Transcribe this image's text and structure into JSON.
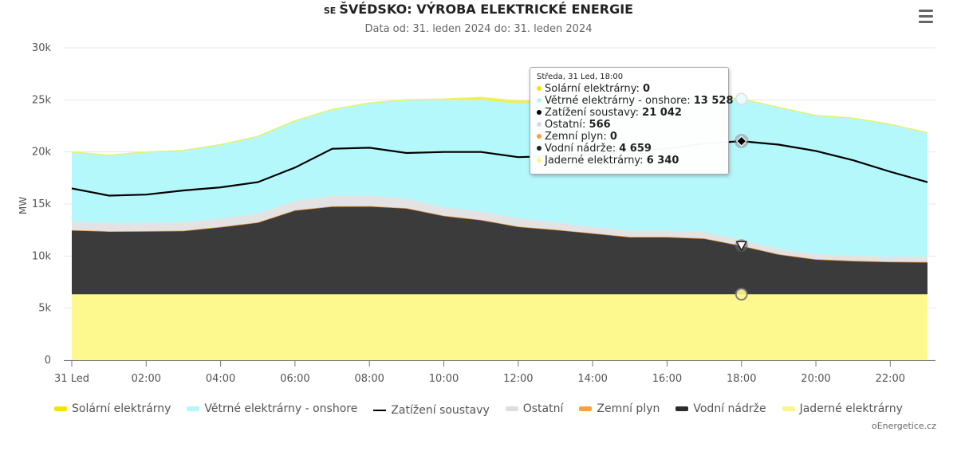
{
  "header": {
    "country_code": "SE",
    "title": "ŠVÉDSKO: VÝROBA ELEKTRICKÉ ENERGIE",
    "subtitle": "Data od: 31. leden 2024 do: 31. leden 2024",
    "menu_icon": "hamburger-menu-icon"
  },
  "credit": "oEnergetice.cz",
  "tooltip": {
    "header": "Středa, 31 Led, 18:00",
    "rows": [
      {
        "label": "Solární elektrárny: ",
        "value": "0",
        "color": "#f2e600"
      },
      {
        "label": "Větrné elektrárny - onshore: ",
        "value": "13 528",
        "color": "#b3f7fb"
      },
      {
        "label": "Zatížení soustavy: ",
        "value": "21 042",
        "color": "#000000"
      },
      {
        "label": "Ostatní: ",
        "value": "566",
        "color": "#d9d9d9"
      },
      {
        "label": "Zemní plyn: ",
        "value": "0",
        "color": "#ff9f40"
      },
      {
        "label": "Vodní nádrže: ",
        "value": "4 659",
        "color": "#222222"
      },
      {
        "label": "Jaderné elektrárny: ",
        "value": "6 340",
        "color": "#fdf58a"
      }
    ]
  },
  "legend": [
    {
      "label": "Solární elektrárny",
      "color": "#f2e600",
      "kind": "area"
    },
    {
      "label": "Větrné elektrárny - onshore",
      "color": "#b3f7fb",
      "kind": "area"
    },
    {
      "label": "Zatížení soustavy",
      "color": "#000000",
      "kind": "line"
    },
    {
      "label": "Ostatní",
      "color": "#dddddd",
      "kind": "area"
    },
    {
      "label": "Zemní plyn",
      "color": "#ff9f40",
      "kind": "area"
    },
    {
      "label": "Vodní nádrže",
      "color": "#2b2b2b",
      "kind": "area"
    },
    {
      "label": "Jaderné elektrárny",
      "color": "#fdf58a",
      "kind": "area"
    }
  ],
  "chart_data": {
    "type": "area",
    "stacked": true,
    "title": "ŠVÉDSKO: VÝROBA ELEKTRICKÉ ENERGIE",
    "subtitle": "Data od: 31. leden 2024 do: 31. leden 2024",
    "ylabel": "MW",
    "ylim": [
      0,
      30000
    ],
    "yticks": [
      0,
      5000,
      10000,
      15000,
      20000,
      25000,
      30000
    ],
    "ytick_labels": [
      "0",
      "5k",
      "10k",
      "15k",
      "20k",
      "25k",
      "30k"
    ],
    "x_hours": [
      0,
      1,
      2,
      3,
      4,
      5,
      6,
      7,
      8,
      9,
      10,
      11,
      12,
      13,
      14,
      15,
      16,
      17,
      18,
      19,
      20,
      21,
      22,
      23
    ],
    "xtick_hours": [
      0,
      2,
      4,
      6,
      8,
      10,
      12,
      14,
      16,
      18,
      20,
      22
    ],
    "xtick_labels": [
      "31 Led",
      "02:00",
      "04:00",
      "06:00",
      "08:00",
      "10:00",
      "12:00",
      "14:00",
      "16:00",
      "18:00",
      "20:00",
      "22:00"
    ],
    "grid": true,
    "legend_position": "bottom",
    "highlight_hour": 18,
    "series": [
      {
        "name": "Jaderné elektrárny",
        "color": "#fdf98f",
        "values": [
          6340,
          6340,
          6340,
          6340,
          6340,
          6340,
          6340,
          6340,
          6340,
          6340,
          6340,
          6340,
          6340,
          6340,
          6340,
          6340,
          6340,
          6340,
          6340,
          6340,
          6340,
          6340,
          6340,
          6340
        ]
      },
      {
        "name": "Vodní nádrže",
        "color": "#3b3b3b",
        "values": [
          6160,
          6040,
          6060,
          6100,
          6460,
          6900,
          8060,
          8440,
          8460,
          8260,
          7540,
          7140,
          6500,
          6200,
          5860,
          5500,
          5500,
          5360,
          4659,
          3840,
          3360,
          3200,
          3120,
          3100
        ]
      },
      {
        "name": "Zemní plyn",
        "color": "#ff9f40",
        "values": [
          0,
          0,
          0,
          0,
          0,
          0,
          0,
          0,
          0,
          0,
          0,
          0,
          0,
          0,
          0,
          0,
          0,
          0,
          0,
          0,
          0,
          0,
          0,
          0
        ]
      },
      {
        "name": "Ostatní",
        "color": "#e3e3e3",
        "values": [
          800,
          800,
          800,
          800,
          800,
          850,
          900,
          1000,
          1000,
          900,
          800,
          800,
          800,
          700,
          600,
          600,
          600,
          600,
          566,
          500,
          500,
          500,
          500,
          500
        ]
      },
      {
        "name": "Větrné elektrárny - onshore",
        "color": "#b5f8fc",
        "values": [
          6700,
          6500,
          6800,
          6900,
          7100,
          7400,
          7700,
          8300,
          8900,
          9500,
          10300,
          10700,
          11000,
          11500,
          12000,
          12500,
          12700,
          13000,
          13528,
          13600,
          13300,
          13200,
          12700,
          11900
        ]
      },
      {
        "name": "Solární elektrárny",
        "color": "#eef05a",
        "values": [
          0,
          0,
          0,
          0,
          0,
          0,
          0,
          0,
          0,
          0,
          100,
          250,
          250,
          150,
          50,
          0,
          0,
          0,
          0,
          0,
          0,
          0,
          0,
          0
        ]
      },
      {
        "name": "Zatížení soustavy",
        "color": "#000000",
        "kind": "line",
        "values": [
          16500,
          15800,
          15900,
          16300,
          16600,
          17100,
          18500,
          20300,
          20400,
          19900,
          20000,
          20000,
          19500,
          19600,
          19800,
          20100,
          20300,
          20800,
          21042,
          20700,
          20100,
          19200,
          18100,
          17100
        ]
      }
    ]
  }
}
